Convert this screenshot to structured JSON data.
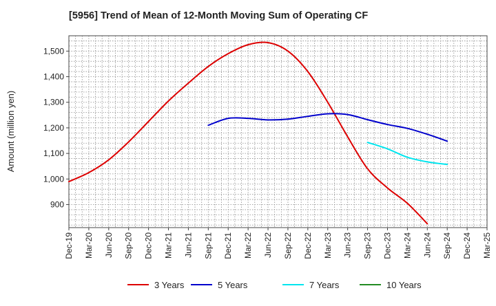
{
  "chart_data": {
    "type": "line",
    "title": "[5956]  Trend of Mean of 12-Month Moving Sum of Operating CF",
    "xlabel": "",
    "ylabel": "Amount (million yen)",
    "ylim": [
      810,
      1560
    ],
    "yticks": [
      900,
      1000,
      1100,
      1200,
      1300,
      1400,
      1500
    ],
    "ytick_labels": [
      "900",
      "1,000",
      "1,100",
      "1,200",
      "1,300",
      "1,400",
      "1,500"
    ],
    "x_categories": [
      "Dec-19",
      "Mar-20",
      "Jun-20",
      "Sep-20",
      "Dec-20",
      "Mar-21",
      "Jun-21",
      "Sep-21",
      "Dec-21",
      "Mar-22",
      "Jun-22",
      "Sep-22",
      "Dec-22",
      "Mar-23",
      "Jun-23",
      "Sep-23",
      "Dec-23",
      "Mar-24",
      "Jun-24",
      "Sep-24",
      "Dec-24",
      "Mar-25"
    ],
    "grid": true,
    "legend_position": "bottom",
    "series": [
      {
        "name": "3 Years",
        "color": "#dd0000",
        "start_index": 0,
        "values": [
          990,
          1025,
          1075,
          1145,
          1225,
          1305,
          1375,
          1440,
          1490,
          1525,
          1533,
          1500,
          1420,
          1300,
          1165,
          1040,
          965,
          905,
          825
        ]
      },
      {
        "name": "5 Years",
        "color": "#0000cc",
        "start_index": 7,
        "values": [
          1210,
          1237,
          1237,
          1231,
          1234,
          1245,
          1255,
          1252,
          1232,
          1213,
          1198,
          1175,
          1148
        ]
      },
      {
        "name": "7 Years",
        "color": "#00e5ee",
        "start_index": 15,
        "values": [
          1143,
          1118,
          1085,
          1067,
          1057
        ]
      },
      {
        "name": "10 Years",
        "color": "#228b22",
        "start_index": 0,
        "values": []
      }
    ]
  }
}
